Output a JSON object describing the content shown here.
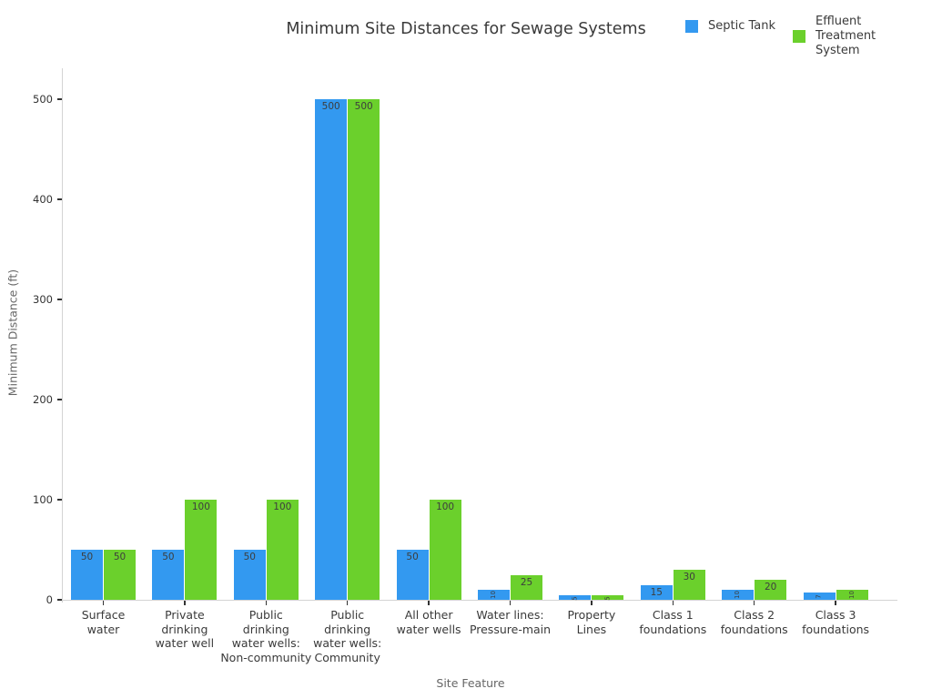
{
  "title": "Minimum Site Distances for Sewage Systems",
  "axes": {
    "xlabel": "Site Feature",
    "ylabel": "Minimum Distance (ft)"
  },
  "legend": {
    "position": "top-right",
    "items": [
      {
        "label": "Septic Tank",
        "color": "#3399f0"
      },
      {
        "label": "Effluent\nTreatment\nSystem",
        "color": "#6bd02c"
      }
    ]
  },
  "chart_data": {
    "type": "bar",
    "categories": [
      "Surface\nwater",
      "Private\ndrinking\nwater well",
      "Public\ndrinking\nwater wells:\nNon-community",
      "Public\ndrinking\nwater wells:\nCommunity",
      "All other\nwater wells",
      "Water lines:\nPressure-main",
      "Property\nLines",
      "Class 1\nfoundations",
      "Class 2\nfoundations",
      "Class 3\nfoundations"
    ],
    "series": [
      {
        "name": "Septic Tank",
        "color": "#3399f0",
        "values": [
          50,
          50,
          50,
          500,
          50,
          10,
          5,
          15,
          10,
          7
        ]
      },
      {
        "name": "Effluent Treatment System",
        "color": "#6bd02c",
        "values": [
          50,
          100,
          100,
          500,
          100,
          25,
          5,
          30,
          20,
          10
        ]
      }
    ],
    "title": "Minimum Site Distances for Sewage Systems",
    "xlabel": "Site Feature",
    "ylabel": "Minimum Distance (ft)",
    "yticks": [
      0,
      100,
      200,
      300,
      400,
      500
    ],
    "ylim": [
      0,
      531
    ],
    "grid": false,
    "legend_position": "top-right",
    "bar_value_labels": true
  }
}
